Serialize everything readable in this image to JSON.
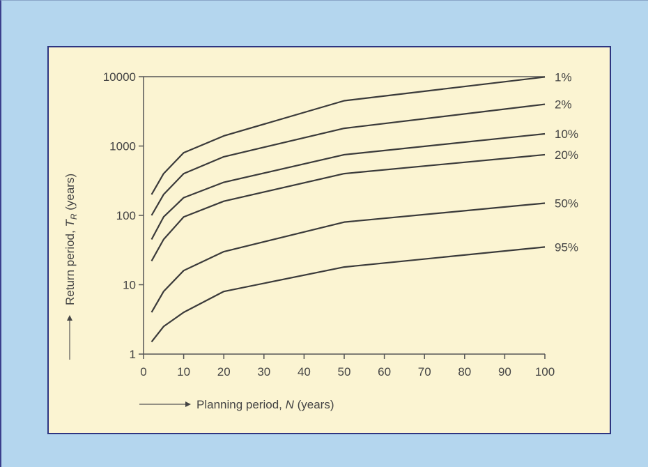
{
  "chart_data": {
    "type": "line",
    "xlabel": "Planning period, N (years)",
    "ylabel": "Return period, T_R (years)",
    "y_scale": "log",
    "xlim": [
      0,
      100
    ],
    "ylim": [
      1,
      10000
    ],
    "x_ticks": [
      "0",
      "10",
      "20",
      "30",
      "40",
      "50",
      "60",
      "70",
      "80",
      "90",
      "100"
    ],
    "y_ticks": [
      "1",
      "10",
      "100",
      "1000",
      "10000"
    ],
    "grid": false,
    "legend_placement": "right (labels at line ends)",
    "x": [
      2,
      5,
      10,
      20,
      50,
      100
    ],
    "series": [
      {
        "name": "1%",
        "values": [
          200,
          400,
          800,
          1400,
          4500,
          9900
        ]
      },
      {
        "name": "2%",
        "values": [
          100,
          200,
          400,
          700,
          1800,
          4000
        ]
      },
      {
        "name": "10%",
        "values": [
          45,
          95,
          180,
          300,
          750,
          1500
        ]
      },
      {
        "name": "20%",
        "values": [
          22,
          45,
          95,
          160,
          400,
          750
        ]
      },
      {
        "name": "50%",
        "values": [
          4,
          8,
          16,
          30,
          80,
          150
        ]
      },
      {
        "name": "95%",
        "values": [
          1.5,
          2.5,
          4,
          8,
          18,
          35
        ]
      }
    ]
  }
}
